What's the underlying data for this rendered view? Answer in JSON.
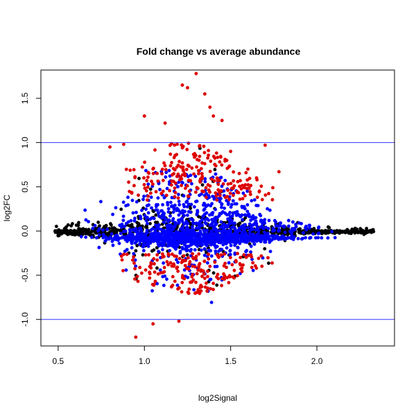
{
  "chart_data": {
    "type": "scatter",
    "title": "Fold change vs average abundance",
    "xlabel": "log2Signal",
    "ylabel": "log2FC",
    "xlim": [
      0.4,
      2.45
    ],
    "ylim": [
      -1.3,
      1.82
    ],
    "x_ticks": [
      0.5,
      1.0,
      1.5,
      2.0
    ],
    "x_tick_labels": [
      "0.5",
      "1.0",
      "1.5",
      "2.0"
    ],
    "y_ticks": [
      -1.0,
      -0.5,
      0.0,
      0.5,
      1.0,
      1.5
    ],
    "y_tick_labels": [
      "-1.0",
      "-0.5",
      "0.0",
      "0.5",
      "1.0",
      "1.5"
    ],
    "grid": false,
    "reference_lines": [
      {
        "axis": "y",
        "value": 1.0,
        "color": "#3333ff"
      },
      {
        "axis": "y",
        "value": -1.0,
        "color": "#3333ff"
      }
    ],
    "series": [
      {
        "color": "#000000",
        "point_count": 900,
        "x": [
          0.48,
          0.52,
          0.58,
          0.65,
          0.72,
          0.8,
          0.9,
          1.0,
          1.1,
          1.2,
          1.3,
          1.4,
          1.5,
          1.6,
          1.7,
          1.8,
          1.9,
          2.0,
          2.1,
          2.2,
          2.3,
          2.33
        ],
        "y": [
          0.03,
          -0.02,
          0.05,
          -0.06,
          0.1,
          -0.12,
          0.15,
          -0.2,
          0.72,
          -0.35,
          0.6,
          -0.45,
          0.4,
          -0.3,
          0.35,
          -0.25,
          0.2,
          -0.15,
          0.1,
          -0.05,
          0.02,
          0.01
        ]
      },
      {
        "color": "#0000ff",
        "point_count": 1500,
        "x": [
          0.55,
          0.65,
          0.75,
          0.85,
          0.95,
          1.05,
          1.15,
          1.25,
          1.35,
          1.45,
          1.55,
          1.65,
          1.75,
          1.85,
          1.95,
          2.05,
          2.15
        ],
        "y": [
          0.05,
          0.2,
          0.35,
          0.45,
          0.55,
          0.6,
          0.62,
          0.63,
          0.58,
          0.52,
          0.45,
          0.38,
          0.3,
          0.22,
          0.15,
          0.1,
          0.08
        ]
      },
      {
        "color": "#dd0000",
        "point_count": 400,
        "x": [
          0.8,
          0.88,
          0.95,
          1.0,
          1.05,
          1.12,
          1.2,
          1.22,
          1.25,
          1.3,
          1.35,
          1.38,
          1.4,
          1.45,
          1.5,
          1.55,
          1.6,
          1.65,
          1.7,
          1.78
        ],
        "y": [
          0.95,
          0.98,
          -1.2,
          1.3,
          -1.05,
          1.22,
          -1.02,
          1.65,
          1.62,
          1.78,
          1.55,
          1.4,
          1.3,
          1.25,
          0.9,
          0.65,
          0.7,
          0.6,
          0.97,
          0.67
        ]
      }
    ]
  }
}
